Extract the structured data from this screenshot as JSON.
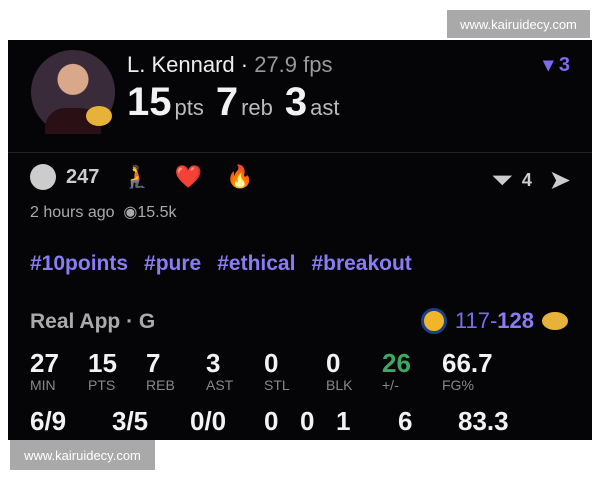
{
  "watermarks": [
    "www.kairuidecy.com",
    "www.kairuidecy.com"
  ],
  "player": {
    "name": "L. Kennard",
    "fps": "27.9 fps",
    "pts": "15",
    "pts_label": "pts",
    "reb": "7",
    "reb_label": "reb",
    "ast": "3",
    "ast_label": "ast",
    "badge_count": "3"
  },
  "reactions": {
    "count": "247",
    "emojis": [
      "🧎",
      "❤️",
      "🔥"
    ],
    "share_count": "4"
  },
  "meta": {
    "time": "2 hours ago",
    "views": "15.5k"
  },
  "tags": [
    "#10points",
    "#pure",
    "#ethical",
    "#breakout"
  ],
  "game": {
    "title": "Real App · G",
    "score_low": "117-",
    "score_high": "128"
  },
  "box": {
    "row1": [
      {
        "v": "27",
        "l": "MIN"
      },
      {
        "v": "15",
        "l": "PTS"
      },
      {
        "v": "7",
        "l": "REB"
      },
      {
        "v": "3",
        "l": "AST"
      },
      {
        "v": "0",
        "l": "STL"
      },
      {
        "v": "0",
        "l": "BLK"
      },
      {
        "v": "26",
        "l": "+/-"
      },
      {
        "v": "66.7",
        "l": "FG%"
      }
    ],
    "row2": [
      "6/9",
      "3/5",
      "0/0",
      "0",
      "0",
      "1",
      "6",
      "83.3"
    ]
  },
  "colors": {
    "accent": "#7a6cf0",
    "plusminus": "#3ca862"
  }
}
